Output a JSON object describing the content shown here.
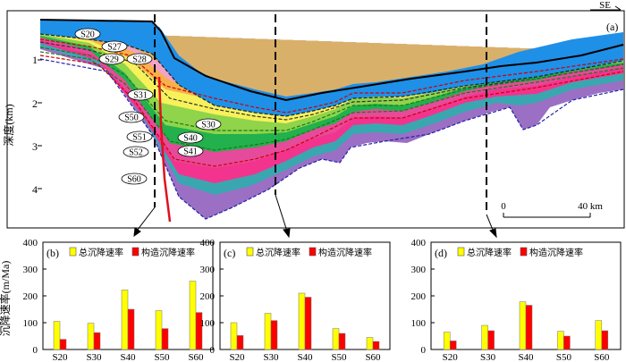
{
  "section": {
    "panel_label": "(a)",
    "direction": "SE",
    "depth_axis_label": "深度(km)",
    "depth_ticks": [
      "1",
      "2",
      "3",
      "4"
    ],
    "scale_bar": {
      "start": "0",
      "end": "40 km"
    },
    "horizon_labels": [
      "S20",
      "S27",
      "S28",
      "S29",
      "S30",
      "S31",
      "S40",
      "S41",
      "S50",
      "S51",
      "S52",
      "S60"
    ]
  },
  "bar_panels": {
    "y_axis_label": "沉降速率(m/Ma)",
    "y_ticks": [
      "0",
      "100",
      "200",
      "300",
      "400"
    ],
    "legend": {
      "total": "总沉降速率",
      "tectonic": "构造沉降速率"
    },
    "colors": {
      "total": "#ffff00",
      "tectonic": "#ff0000"
    }
  },
  "chart_data": [
    {
      "type": "bar",
      "title": "(b)",
      "categories": [
        "S20",
        "S30",
        "S40",
        "S50",
        "S60"
      ],
      "ylabel": "沉降速率(m/Ma)",
      "ylim": [
        0,
        400
      ],
      "series": [
        {
          "name": "总沉降速率",
          "values": [
            105,
            98,
            222,
            145,
            255
          ]
        },
        {
          "name": "构造沉降速率",
          "values": [
            38,
            63,
            150,
            78,
            138
          ]
        }
      ]
    },
    {
      "type": "bar",
      "title": "(c)",
      "categories": [
        "S20",
        "S30",
        "S40",
        "S50",
        "S60"
      ],
      "ylim": [
        0,
        400
      ],
      "series": [
        {
          "name": "总沉降速率",
          "values": [
            100,
            135,
            210,
            78,
            45
          ]
        },
        {
          "name": "构造沉降速率",
          "values": [
            52,
            108,
            195,
            60,
            30
          ]
        }
      ]
    },
    {
      "type": "bar",
      "title": "(d)",
      "categories": [
        "S20",
        "S30",
        "S40",
        "S50",
        "S60"
      ],
      "ylim": [
        0,
        400
      ],
      "series": [
        {
          "name": "总沉降速率",
          "values": [
            65,
            90,
            178,
            68,
            108
          ]
        },
        {
          "name": "构造沉降速率",
          "values": [
            32,
            70,
            165,
            50,
            70
          ]
        }
      ]
    }
  ]
}
